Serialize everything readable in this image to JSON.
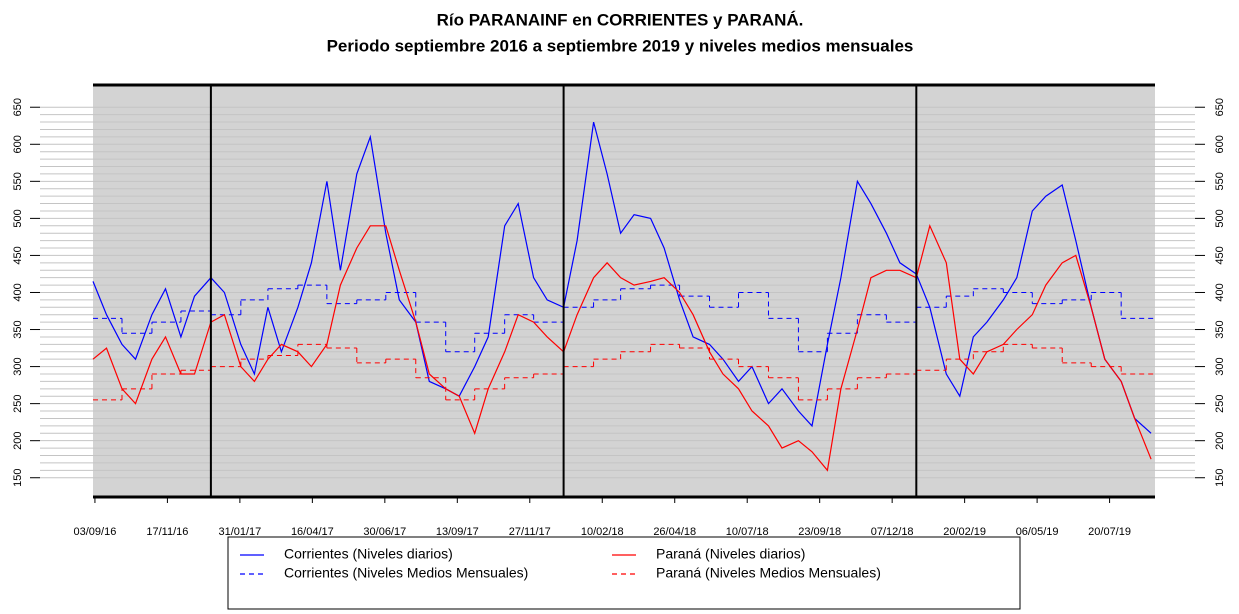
{
  "chart_data": {
    "type": "line",
    "title": "Río PARANAINF en CORRIENTES y PARANÁ.",
    "subtitle": "Periodo septiembre 2016 a septiembre 2019 y niveles medios mensuales",
    "xlim": [
      "2016-09-01",
      "2019-09-05"
    ],
    "ylim": [
      124,
      680
    ],
    "yticks": [
      150,
      200,
      250,
      300,
      350,
      400,
      450,
      500,
      550,
      600,
      650
    ],
    "minor_yticks": [
      150,
      160,
      170,
      180,
      190,
      200,
      210,
      220,
      230,
      240,
      250,
      260,
      270,
      280,
      290,
      300,
      310,
      320,
      330,
      340,
      350,
      360,
      370,
      380,
      390,
      400,
      410,
      420,
      430,
      440,
      450,
      460,
      470,
      480,
      490,
      500,
      510,
      520,
      530,
      540,
      550,
      560,
      570,
      580,
      590,
      600,
      610,
      620,
      630,
      640,
      650
    ],
    "xticks": [
      {
        "value": "2016-09-03",
        "label": "03/09/16"
      },
      {
        "value": "2016-11-17",
        "label": "17/11/16"
      },
      {
        "value": "2017-01-31",
        "label": "31/01/17"
      },
      {
        "value": "2017-04-16",
        "label": "16/04/17"
      },
      {
        "value": "2017-06-30",
        "label": "30/06/17"
      },
      {
        "value": "2017-09-13",
        "label": "13/09/17"
      },
      {
        "value": "2017-11-27",
        "label": "27/11/17"
      },
      {
        "value": "2018-02-10",
        "label": "10/02/18"
      },
      {
        "value": "2018-04-26",
        "label": "26/04/18"
      },
      {
        "value": "2018-07-10",
        "label": "10/07/18"
      },
      {
        "value": "2018-09-23",
        "label": "23/09/18"
      },
      {
        "value": "2018-12-07",
        "label": "07/12/18"
      },
      {
        "value": "2019-02-20",
        "label": "20/02/19"
      },
      {
        "value": "2019-05-06",
        "label": "06/05/19"
      },
      {
        "value": "2019-07-20",
        "label": "20/07/19"
      }
    ],
    "year_lines": [
      "2017-01-01",
      "2018-01-01",
      "2019-01-01"
    ],
    "grid": true,
    "series": [
      {
        "name": "Corrientes (Niveles diarios)",
        "color": "#0000ff",
        "style": "solid",
        "x": [
          "2016-09-01",
          "2016-09-15",
          "2016-10-01",
          "2016-10-15",
          "2016-11-01",
          "2016-11-15",
          "2016-12-01",
          "2016-12-15",
          "2017-01-01",
          "2017-01-15",
          "2017-02-01",
          "2017-02-15",
          "2017-03-01",
          "2017-03-15",
          "2017-04-01",
          "2017-04-15",
          "2017-05-01",
          "2017-05-15",
          "2017-06-01",
          "2017-06-15",
          "2017-07-01",
          "2017-07-15",
          "2017-08-01",
          "2017-08-15",
          "2017-09-01",
          "2017-09-15",
          "2017-10-01",
          "2017-10-15",
          "2017-11-01",
          "2017-11-15",
          "2017-12-01",
          "2017-12-15",
          "2018-01-01",
          "2018-01-15",
          "2018-02-01",
          "2018-02-15",
          "2018-03-01",
          "2018-03-15",
          "2018-04-01",
          "2018-04-15",
          "2018-05-01",
          "2018-05-15",
          "2018-06-01",
          "2018-06-15",
          "2018-07-01",
          "2018-07-15",
          "2018-08-01",
          "2018-08-15",
          "2018-09-01",
          "2018-09-15",
          "2018-10-01",
          "2018-10-15",
          "2018-11-01",
          "2018-11-15",
          "2018-12-01",
          "2018-12-15",
          "2019-01-01",
          "2019-01-15",
          "2019-02-01",
          "2019-02-15",
          "2019-03-01",
          "2019-03-15",
          "2019-04-01",
          "2019-04-15",
          "2019-05-01",
          "2019-05-15",
          "2019-06-01",
          "2019-06-15",
          "2019-07-01",
          "2019-07-15",
          "2019-08-01",
          "2019-08-15",
          "2019-09-01"
        ],
        "values": [
          415,
          370,
          330,
          310,
          370,
          405,
          340,
          395,
          420,
          400,
          330,
          290,
          380,
          320,
          380,
          440,
          550,
          430,
          560,
          610,
          480,
          390,
          360,
          280,
          270,
          260,
          300,
          340,
          490,
          520,
          420,
          390,
          380,
          470,
          630,
          560,
          480,
          505,
          500,
          460,
          390,
          340,
          330,
          310,
          280,
          300,
          250,
          270,
          240,
          220,
          330,
          420,
          550,
          520,
          480,
          440,
          425,
          380,
          290,
          260,
          340,
          360,
          390,
          420,
          510,
          530,
          545,
          470,
          380,
          310,
          280,
          230,
          210
        ]
      },
      {
        "name": "Corrientes (Niveles Medios Mensuales)",
        "color": "#0000ff",
        "style": "dashed",
        "x": [
          "2016-09-01",
          "2016-10-01",
          "2016-11-01",
          "2016-12-01",
          "2017-01-01",
          "2017-02-01",
          "2017-03-01",
          "2017-04-01",
          "2017-05-01",
          "2017-06-01",
          "2017-07-01",
          "2017-08-01",
          "2017-09-01",
          "2017-10-01",
          "2017-11-01",
          "2017-12-01",
          "2018-01-01",
          "2018-02-01",
          "2018-03-01",
          "2018-04-01",
          "2018-05-01",
          "2018-06-01",
          "2018-07-01",
          "2018-08-01",
          "2018-09-01",
          "2018-10-01",
          "2018-11-01",
          "2018-12-01",
          "2019-01-01",
          "2019-02-01",
          "2019-03-01",
          "2019-04-01",
          "2019-05-01",
          "2019-06-01",
          "2019-07-01",
          "2019-08-01"
        ],
        "values": [
          365,
          345,
          360,
          375,
          370,
          390,
          405,
          410,
          385,
          390,
          400,
          360,
          320,
          345,
          370,
          360,
          380,
          390,
          405,
          410,
          395,
          380,
          400,
          365,
          320,
          345,
          370,
          360,
          380,
          395,
          405,
          400,
          385,
          390,
          400,
          365
        ]
      },
      {
        "name": "Paraná (Niveles diarios)",
        "color": "#ff0000",
        "style": "solid",
        "x": [
          "2016-09-01",
          "2016-09-15",
          "2016-10-01",
          "2016-10-15",
          "2016-11-01",
          "2016-11-15",
          "2016-12-01",
          "2016-12-15",
          "2017-01-01",
          "2017-01-15",
          "2017-02-01",
          "2017-02-15",
          "2017-03-01",
          "2017-03-15",
          "2017-04-01",
          "2017-04-15",
          "2017-05-01",
          "2017-05-15",
          "2017-06-01",
          "2017-06-15",
          "2017-07-01",
          "2017-07-15",
          "2017-08-01",
          "2017-08-15",
          "2017-09-01",
          "2017-09-15",
          "2017-10-01",
          "2017-10-15",
          "2017-11-01",
          "2017-11-15",
          "2017-12-01",
          "2017-12-15",
          "2018-01-01",
          "2018-01-15",
          "2018-02-01",
          "2018-02-15",
          "2018-03-01",
          "2018-03-15",
          "2018-04-01",
          "2018-04-15",
          "2018-05-01",
          "2018-05-15",
          "2018-06-01",
          "2018-06-15",
          "2018-07-01",
          "2018-07-15",
          "2018-08-01",
          "2018-08-15",
          "2018-09-01",
          "2018-09-15",
          "2018-10-01",
          "2018-10-15",
          "2018-11-01",
          "2018-11-15",
          "2018-12-01",
          "2018-12-15",
          "2019-01-01",
          "2019-01-15",
          "2019-02-01",
          "2019-02-15",
          "2019-03-01",
          "2019-03-15",
          "2019-04-01",
          "2019-04-15",
          "2019-05-01",
          "2019-05-15",
          "2019-06-01",
          "2019-06-15",
          "2019-07-01",
          "2019-07-15",
          "2019-08-01",
          "2019-08-15",
          "2019-09-01"
        ],
        "values": [
          310,
          325,
          270,
          250,
          310,
          340,
          290,
          290,
          360,
          370,
          300,
          280,
          310,
          330,
          320,
          300,
          330,
          410,
          460,
          490,
          490,
          430,
          360,
          290,
          270,
          260,
          210,
          270,
          320,
          370,
          360,
          340,
          320,
          370,
          420,
          440,
          420,
          410,
          415,
          420,
          400,
          370,
          320,
          290,
          270,
          240,
          220,
          190,
          200,
          185,
          160,
          270,
          350,
          420,
          430,
          430,
          420,
          490,
          440,
          310,
          290,
          320,
          330,
          350,
          370,
          410,
          440,
          450,
          380,
          310,
          280,
          230,
          175
        ]
      },
      {
        "name": "Paraná (Niveles Medios Mensuales)",
        "color": "#ff0000",
        "style": "dashed",
        "x": [
          "2016-09-01",
          "2016-10-01",
          "2016-11-01",
          "2016-12-01",
          "2017-01-01",
          "2017-02-01",
          "2017-03-01",
          "2017-04-01",
          "2017-05-01",
          "2017-06-01",
          "2017-07-01",
          "2017-08-01",
          "2017-09-01",
          "2017-10-01",
          "2017-11-01",
          "2017-12-01",
          "2018-01-01",
          "2018-02-01",
          "2018-03-01",
          "2018-04-01",
          "2018-05-01",
          "2018-06-01",
          "2018-07-01",
          "2018-08-01",
          "2018-09-01",
          "2018-10-01",
          "2018-11-01",
          "2018-12-01",
          "2019-01-01",
          "2019-02-01",
          "2019-03-01",
          "2019-04-01",
          "2019-05-01",
          "2019-06-01",
          "2019-07-01",
          "2019-08-01"
        ],
        "values": [
          255,
          270,
          290,
          295,
          300,
          310,
          315,
          330,
          325,
          305,
          310,
          285,
          255,
          270,
          285,
          290,
          300,
          310,
          320,
          330,
          325,
          310,
          300,
          285,
          255,
          270,
          285,
          290,
          295,
          310,
          320,
          330,
          325,
          305,
          300,
          290
        ]
      }
    ]
  }
}
